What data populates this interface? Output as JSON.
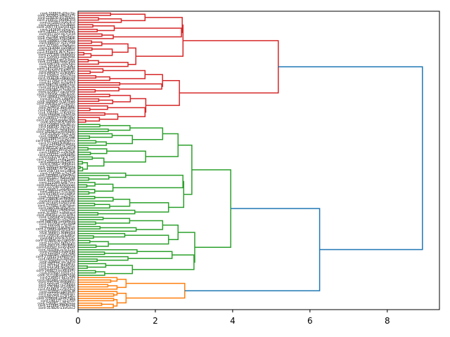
{
  "chart_data": {
    "type": "dendrogram",
    "title": "",
    "xlabel": "",
    "ylabel": "",
    "orientation": "left",
    "xlim": [
      0,
      9.35
    ],
    "xticks": [
      0,
      2,
      4,
      6,
      8
    ],
    "xtick_labels": [
      "0",
      "2",
      "4",
      "6",
      "8"
    ],
    "grid": false,
    "colors": {
      "cluster_red": "#d62728",
      "cluster_green": "#2ca02c",
      "cluster_orange": "#ff7f0e",
      "link_above_threshold": "#1f77b4"
    },
    "clusters": [
      {
        "name": "red",
        "color": "#d62728",
        "leaf_count": 48,
        "merge_height": 5.18,
        "sub_merges": [
          3.52,
          2.85,
          2.3,
          2.28,
          2.13,
          1.98,
          1.78,
          1.7
        ]
      },
      {
        "name": "green",
        "color": "#2ca02c",
        "leaf_count": 66,
        "merge_height": 3.95,
        "sub_merges": [
          3.57,
          3.2,
          3.08,
          2.88,
          2.45,
          2.3,
          2.18,
          1.85
        ]
      },
      {
        "name": "orange",
        "color": "#ff7f0e",
        "leaf_count": 14,
        "merge_height": 2.76,
        "sub_merges": [
          1.5,
          1.35,
          1.2
        ]
      }
    ],
    "top_links": [
      {
        "children": [
          "green",
          "orange"
        ],
        "height": 6.25,
        "color": "#1f77b4"
      },
      {
        "children": [
          "red",
          "green+orange"
        ],
        "height": 8.91,
        "color": "#1f77b4"
      }
    ],
    "leaf_label_first": "cord-328920-d2lrn1lp",
    "leaf_label_last": "cord-314826-u3vfunc2",
    "leaf_labels": [
      "cord-328920-d2lrn1lp",
      "cord-302845-a8kq2x7v",
      "cord-118476-mx3pl0ze",
      "cord-254031-0tq9w2nd",
      "cord-071893-hy6c4rsl",
      "cord-336102-fz1u8kbe",
      "cord-209774-kw5nd3oa",
      "cord-142658-p0xjv7tr",
      "cord-283417-se4m9lqc",
      "cord-057320-nb7r2iyd",
      "cord-311964-vx8o0gup",
      "cord-196285-lt3ka5wm",
      "cord-248901-cj6e1hzq",
      "cord-089437-ru2y7fds",
      "cord-327560-ie9w4pkn",
      "cord-163098-oa5t8bxl",
      "cord-295742-gm1q6zrc",
      "cord-034816-dk7s3nwv",
      "cord-271309-ub4h0ejy",
      "cord-120593-zq8l2fmo",
      "cord-318467-wn3c9atu",
      "cord-225180-hb6x1rpk",
      "cord-046729-ye0v5gsi",
      "cord-301856-tl7n4dqz",
      "cord-187234-mr2a8kvo",
      "cord-262015-fs9j3cwh",
      "cord-095871-kp4u6lbx",
      "cord-339402-na1e7tzg",
      "cord-153628-vd8q0osy",
      "cord-277943-jc5r2mfu",
      "cord-012685-xo3w9hil",
      "cord-308174-qg6k1nep",
      "cord-241559-bs0t4yza",
      "cord-076380-lh7m8cud",
      "cord-322917-ew2p5rjk",
      "cord-174206-oz9c3vxm",
      "cord-289641-tf4n0agq",
      "cord-051728-iu8b6lsy",
      "cord-316095-rk1d7hwo",
      "cord-208362-pm5x2ezc",
      "cord-134870-gy3l9qtn",
      "cord-267514-da0v4kfb",
      "cord-092347-sw6h1jou",
      "cord-330781-nc8r5mie",
      "cord-159026-ya2t7pxl",
      "cord-284613-hv9k0dgs",
      "cord-027459-mq4w3bzr",
      "cord-305238-fj7e6nol",
      "cord-216804-kt1o8cvu",
      "cord-068591-zb5s2ray",
      "cord-325176-lw0g9hpe",
      "cord-181943-ux6m4kdn",
      "cord-253620-eo3c1jqi",
      "cord-109387-ad8v7tsz",
      "cord-298054-rn2y5lfh",
      "cord-040713-cg9p0wmx",
      "cord-313469-jk4b6ouv",
      "cord-232798-ts7l3aiq",
      "cord-085126-qe1n8zyd",
      "cord-334582-bm5h2xcr",
      "cord-168935-vu0k9gft",
      "cord-274251-ow6d4slp",
      "cord-016378-hz3r7enj",
      "cord-319847-mi8a1qwb",
      "cord-245103-dy2f5voc",
      "cord-079662-xl9t0kus",
      "cord-326019-ga4j6hmz",
      "cord-190487-nr7w3ptd",
      "cord-258734-ke1x8biq",
      "cord-114296-sc5o2yfl",
      "cord-292860-up0m9vaj",
      "cord-053417-fw6e4rgk",
      "cord-309571-lo3q1dnh",
      "cord-221048-ty8c7zxs",
      "cord-097635-ib2k5mwe",
      "cord-337190-ev9g0ulq",
      "cord-146853-zd4n6hap",
      "cord-280312-rj7v3sco",
      "cord-031964-mn1b8fyt",
      "cord-315728-oq5s2kix",
      "cord-238406-wc0h9tgu",
      "cord-072193-ap6l4drz",
      "cord-321645-hx3e1ynb",
      "cord-177082-ks8j7qom",
      "cord-286539-gt2w5viu",
      "cord-048271-bf9r0lxe",
      "cord-312807-nz4k6apd",
      "cord-204163-yu7c3mhs",
      "cord-128594-el1o8qwj",
      "cord-264930-ci5x2tvk",
      "cord-088746-sm0d9nzg",
      "cord-332058-vr6y4bhf",
      "cord-155319-jo3p1lue",
      "cord-279685-da8m7kwc",
      "cord-020437-qh2t5xiy",
      "cord-306912-ln9f0gos",
      "cord-229574-ub4a6ezr",
      "cord-081209-tk7s3cjv",
      "cord-323846-wx1q8mdn",
      "cord-171352-fg5h2ylo",
      "cord-290716-ri0e9pbu",
      "cord-043581-hm6n4wkt",
      "cord-310269-za3c1vqs",
      "cord-215943-oy8l7jgx",
      "cord-102487-ce2u5rdi",
      "cord-270635-kq9b0mwz",
      "cord-065914-pv4t6xhe",
      "cord-328402-sn7o3fal",
      "cord-186170-gj1y8kuc",
      "cord-251796-xr5d2ebt",
      "cord-116359-lf0w9sqo",
      "cord-294823-mu6k4ahv",
      "cord-037642-td3j1ynz",
      "cord-317108-ew8r7cgp",
      "cord-236951-bk2x5vil",
      "cord-091480-nq9s0ofm",
      "cord-335716-hc4g6tzu",
      "cord-162045-ry7l3dwa",
      "cord-276398-oi1m8pkj",
      "cord-024863-vs5b2xeg",
      "cord-320591-ja0n9ulh",
      "cord-247216-fd6e4qyc",
      "cord-083759-kx3t1wro",
      "cord-329604-zm8h7gbs",
      "cord-198327-up2c5lif",
      "cord-256081-gq9y0voa",
      "cord-122945-ct4r6emk",
      "cord-314826-u3vfunc2"
    ]
  }
}
